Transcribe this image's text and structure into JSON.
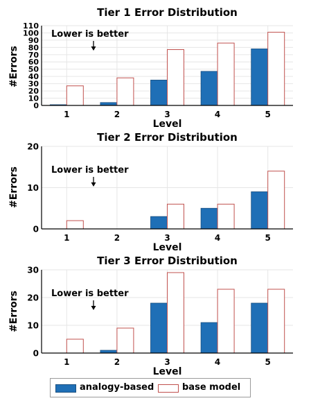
{
  "chart_data": [
    {
      "type": "bar",
      "title": "Tier 1 Error Distribution",
      "xlabel": "Level",
      "ylabel": "#Errors",
      "annotation": "Lower is better",
      "categories": [
        "1",
        "2",
        "3",
        "4",
        "5"
      ],
      "ylim": [
        0,
        110
      ],
      "yticks": [
        0,
        10,
        20,
        30,
        40,
        50,
        60,
        70,
        80,
        90,
        100,
        110
      ],
      "grid": true,
      "series": [
        {
          "name": "analogy-based",
          "values": [
            1,
            4,
            35,
            47,
            78
          ]
        },
        {
          "name": "base model",
          "values": [
            27,
            38,
            77,
            86,
            101
          ]
        }
      ]
    },
    {
      "type": "bar",
      "title": "Tier 2 Error Distribution",
      "xlabel": "Level",
      "ylabel": "#Errors",
      "annotation": "Lower is better",
      "categories": [
        "1",
        "2",
        "3",
        "4",
        "5"
      ],
      "ylim": [
        0,
        20
      ],
      "yticks": [
        0,
        10,
        20
      ],
      "grid": true,
      "series": [
        {
          "name": "analogy-based",
          "values": [
            0,
            0,
            3,
            5,
            9
          ]
        },
        {
          "name": "base model",
          "values": [
            2,
            0,
            6,
            6,
            14
          ]
        }
      ]
    },
    {
      "type": "bar",
      "title": "Tier 3 Error Distribution",
      "xlabel": "Level",
      "ylabel": "#Errors",
      "annotation": "Lower is better",
      "categories": [
        "1",
        "2",
        "3",
        "4",
        "5"
      ],
      "ylim": [
        0,
        30
      ],
      "yticks": [
        0,
        10,
        20,
        30
      ],
      "grid": true,
      "series": [
        {
          "name": "analogy-based",
          "values": [
            0,
            1,
            18,
            11,
            18
          ]
        },
        {
          "name": "base model",
          "values": [
            5,
            9,
            29,
            23,
            23
          ]
        }
      ]
    }
  ],
  "legend": {
    "placement": "bottom-center",
    "items": [
      "analogy-based",
      "base model"
    ]
  },
  "colors": {
    "analogy_fill": "#1f6fb6",
    "analogy_edge": "#1a4f80",
    "base_fill": "#ffffff",
    "base_edge": "#c0504d",
    "grid": "#e6e6e6",
    "axis": "#000000"
  }
}
